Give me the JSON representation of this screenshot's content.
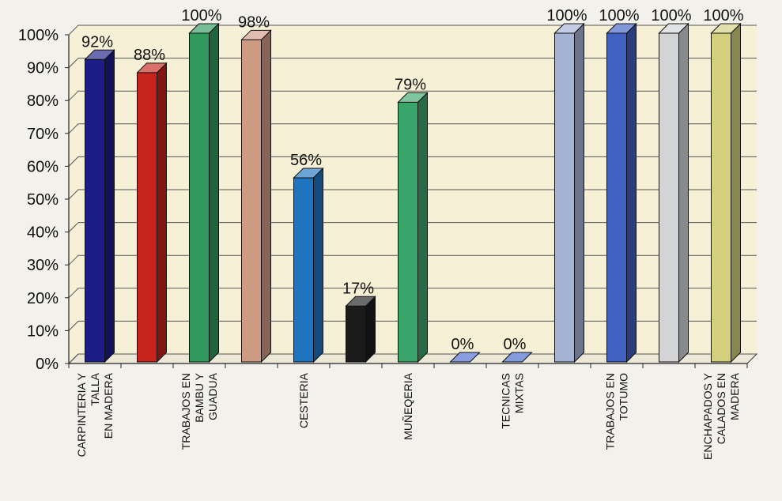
{
  "chart_data": {
    "type": "bar",
    "categories": [
      "CARPINTERIA Y TALLA EN MADERA",
      "",
      "TRABAJOS EN BAMBU Y GUADUA",
      "",
      "CESTERIA",
      "",
      "MUÑEQERIA",
      "",
      "TECNICAS MIXTAS",
      "",
      "TRABAJOS EN TOTUMO",
      "",
      "ENCHAPADOS Y CALADOS EN MADERA"
    ],
    "category_lines": [
      [
        "CARPINTERIA Y",
        "TALLA",
        "EN MADERA"
      ],
      [],
      [
        "TRABAJOS EN",
        "BAMBU Y",
        "GUADUA"
      ],
      [],
      [
        "CESTERIA"
      ],
      [],
      [
        "MUÑEQERIA"
      ],
      [],
      [
        "TECNICAS",
        "MIXTAS"
      ],
      [],
      [
        "TRABAJOS EN",
        "TOTUMO"
      ],
      [],
      [
        "ENCHAPADOS Y",
        "CALADOS EN",
        "MADERA"
      ]
    ],
    "values": [
      92,
      88,
      100,
      98,
      56,
      17,
      79,
      0,
      0,
      100,
      100,
      100,
      100
    ],
    "data_labels": [
      "92%",
      "88%",
      "100%",
      "98%",
      "56%",
      "17%",
      "79%",
      "0%",
      "0%",
      "100%",
      "100%",
      "100%",
      "100%"
    ],
    "colors": [
      "#1c1d86",
      "#c8241c",
      "#2f9a5c",
      "#cf9a82",
      "#1f74c0",
      "#1b1b1b",
      "#3aa56a",
      "#4a6ad0",
      "#3f66cc",
      "#a4b2d6",
      "#4060c4",
      "#d2d4d6",
      "#d3cf7c"
    ],
    "ylim": [
      0,
      100
    ],
    "yticks": [
      "0%",
      "10%",
      "20%",
      "30%",
      "40%",
      "50%",
      "60%",
      "70%",
      "80%",
      "90%",
      "100%"
    ],
    "grid": true,
    "plot_bg": "#f6f1d6",
    "grid_color": "#555555"
  }
}
